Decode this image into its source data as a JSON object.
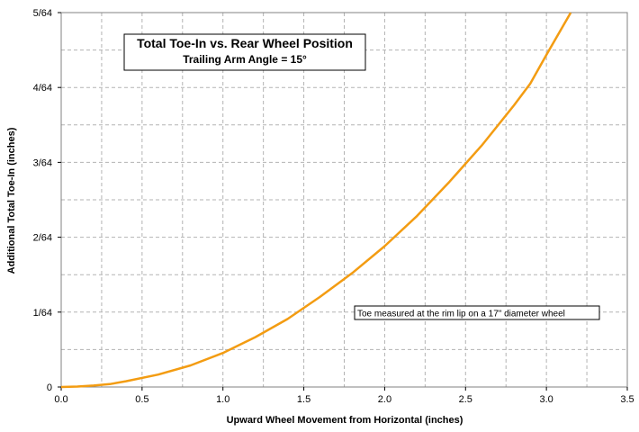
{
  "chart_data": {
    "type": "line",
    "title": "Total Toe-In vs. Rear Wheel Position",
    "subtitle": "Trailing Arm Angle = 15°",
    "xlabel": "Upward Wheel Movement from Horizontal (inches)",
    "ylabel": "Additional Total Toe-In (inches)",
    "annotation": "Toe measured at the rim lip on a 17\" diameter wheel",
    "xlim": [
      0,
      3.5
    ],
    "ylim": [
      0,
      0.078125
    ],
    "x_ticks": [
      {
        "value": 0.0,
        "label": "0.0"
      },
      {
        "value": 0.5,
        "label": "0.5"
      },
      {
        "value": 1.0,
        "label": "1.0"
      },
      {
        "value": 1.5,
        "label": "1.5"
      },
      {
        "value": 2.0,
        "label": "2.0"
      },
      {
        "value": 2.5,
        "label": "2.5"
      },
      {
        "value": 3.0,
        "label": "3.0"
      },
      {
        "value": 3.5,
        "label": "3.5"
      }
    ],
    "y_ticks": [
      {
        "value": 0,
        "label": "0"
      },
      {
        "value": 0.015625,
        "label": "1/64"
      },
      {
        "value": 0.03125,
        "label": "2/64"
      },
      {
        "value": 0.046875,
        "label": "3/64"
      },
      {
        "value": 0.0625,
        "label": "4/64"
      },
      {
        "value": 0.078125,
        "label": "5/64"
      }
    ],
    "grid": true,
    "line_color": "#F39C12",
    "series": [
      {
        "x": [
          0,
          0.1,
          0.2,
          0.3,
          0.4,
          0.6,
          0.8,
          1.0,
          1.2,
          1.4,
          1.6,
          1.8,
          2.0,
          2.2,
          2.4,
          2.6,
          2.8,
          2.9,
          3.0,
          3.15
        ],
        "y": [
          0,
          0.0001,
          0.0003,
          0.0006,
          0.0012,
          0.0026,
          0.0045,
          0.0071,
          0.0104,
          0.0142,
          0.0188,
          0.0238,
          0.0294,
          0.0357,
          0.0428,
          0.0504,
          0.0588,
          0.0633,
          0.0693,
          0.0781
        ]
      }
    ]
  }
}
